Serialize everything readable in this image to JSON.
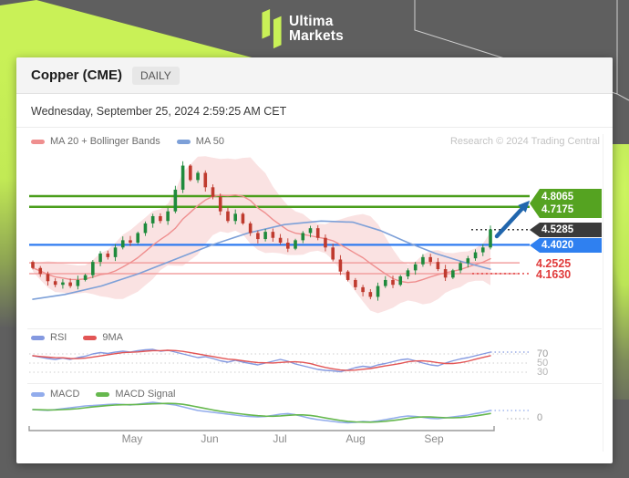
{
  "logo": {
    "line1": "Ultima",
    "line2": "Markets"
  },
  "header": {
    "title": "Copper (CME)",
    "timeframe": "DAILY"
  },
  "date_line": "Wednesday, September 25, 2024 2:59:25 AM CET",
  "credit": "Research © 2024 Trading Central",
  "colors": {
    "accent_lime": "#c9f157",
    "background_gray": "#5f5f5f",
    "candle_up": "#1f8a3c",
    "candle_down": "#bf3a2e",
    "band_fill": "#f3b6b6",
    "ma20": "#ef8f8f",
    "ma50": "#7da0d8",
    "level_resistance": "#4a9e1b",
    "level_pivot": "#2f7bf0",
    "level_support": "#f2a0a0",
    "support_text": "#e03c3c",
    "last_dotted": "#3a3a3a",
    "rsi": "#8499e0",
    "rsi_ma": "#e25555",
    "macd": "#92acec",
    "macd_signal": "#66b84e",
    "arrow": "#2166ad",
    "tag_green": "#55a321",
    "tag_dark": "#3a3a3a",
    "tag_blue": "#2f80f0"
  },
  "chart_data": {
    "type": "candlestick",
    "symbol": "Copper (CME)",
    "interval": "DAILY",
    "title": "Copper (CME) daily candlestick chart with MA20+Bollinger Bands, MA50, RSI and MACD",
    "x_axis": {
      "labels": [
        "May",
        "Jun",
        "Jul",
        "Aug",
        "Sep"
      ],
      "range": "mid-April to late September 2024"
    },
    "y_axis": {
      "approx_range": [
        3.9,
        5.15
      ]
    },
    "levels": [
      {
        "label": "4.8065",
        "value": 4.8065,
        "kind": "resistance",
        "style": "solid-green"
      },
      {
        "label": "4.7175",
        "value": 4.7175,
        "kind": "resistance",
        "style": "solid-green"
      },
      {
        "label": "4.5285",
        "value": 4.5285,
        "kind": "last-price",
        "style": "dotted-dark"
      },
      {
        "label": "4.4020",
        "value": 4.402,
        "kind": "pivot",
        "style": "solid-blue"
      },
      {
        "label": "4.2525",
        "value": 4.2525,
        "kind": "support",
        "style": "solid-light-red"
      },
      {
        "label": "4.1630",
        "value": 4.163,
        "kind": "support",
        "style": "solid-light-red-dotted-end"
      }
    ],
    "closes": [
      4.21,
      4.16,
      4.1,
      4.07,
      4.09,
      4.06,
      4.11,
      4.15,
      4.26,
      4.33,
      4.3,
      4.38,
      4.44,
      4.42,
      4.5,
      4.58,
      4.64,
      4.6,
      4.68,
      4.86,
      5.06,
      4.94,
      5.0,
      4.88,
      4.8,
      4.68,
      4.6,
      4.66,
      4.58,
      4.5,
      4.45,
      4.51,
      4.46,
      4.42,
      4.37,
      4.44,
      4.5,
      4.54,
      4.46,
      4.38,
      4.28,
      4.18,
      4.11,
      4.05,
      4.01,
      3.97,
      4.06,
      4.11,
      4.07,
      4.14,
      4.19,
      4.24,
      4.3,
      4.26,
      4.2,
      4.13,
      4.19,
      4.25,
      4.29,
      4.34,
      4.38,
      4.53
    ],
    "ma50_path": [
      [
        0,
        3.95
      ],
      [
        0.07,
        3.99
      ],
      [
        0.15,
        4.06
      ],
      [
        0.23,
        4.16
      ],
      [
        0.31,
        4.28
      ],
      [
        0.39,
        4.4
      ],
      [
        0.47,
        4.5
      ],
      [
        0.55,
        4.57
      ],
      [
        0.63,
        4.6
      ],
      [
        0.7,
        4.59
      ],
      [
        0.76,
        4.52
      ],
      [
        0.82,
        4.42
      ],
      [
        0.88,
        4.33
      ],
      [
        0.94,
        4.26
      ],
      [
        1,
        4.2
      ]
    ],
    "indicators": {
      "rsi": {
        "guides": [
          70,
          50,
          30
        ],
        "values": [
          66,
          63,
          60,
          58,
          61,
          58,
          62,
          65,
          70,
          73,
          71,
          74,
          76,
          74,
          77,
          79,
          80,
          76,
          78,
          74,
          70,
          66,
          62,
          64,
          60,
          55,
          52,
          56,
          52,
          49,
          46,
          50,
          54,
          58,
          54,
          48,
          44,
          40,
          36,
          34,
          33,
          31,
          35,
          40,
          43,
          41,
          46,
          49,
          53,
          57,
          59,
          55,
          50,
          46,
          44,
          50,
          55,
          59,
          62,
          66,
          70,
          74
        ]
      },
      "macd": {
        "guides": [
          0
        ],
        "values": [
          0.05,
          0.048,
          0.046,
          0.05,
          0.055,
          0.06,
          0.065,
          0.07,
          0.072,
          0.075,
          0.078,
          0.08,
          0.078,
          0.075,
          0.08,
          0.085,
          0.09,
          0.085,
          0.08,
          0.075,
          0.065,
          0.055,
          0.045,
          0.04,
          0.035,
          0.03,
          0.025,
          0.02,
          0.015,
          0.012,
          0.01,
          0.012,
          0.018,
          0.025,
          0.028,
          0.022,
          0.012,
          0.002,
          -0.005,
          -0.01,
          -0.015,
          -0.02,
          -0.022,
          -0.02,
          -0.015,
          -0.018,
          -0.012,
          -0.005,
          0.002,
          0.01,
          0.015,
          0.012,
          0.008,
          0.002,
          0.0,
          0.005,
          0.01,
          0.015,
          0.02,
          0.028,
          0.035,
          0.045
        ]
      }
    },
    "legends": {
      "main": [
        {
          "label": "MA 20 + Bollinger Bands"
        },
        {
          "label": "MA 50"
        }
      ],
      "rsi": [
        {
          "label": "RSI"
        },
        {
          "label": "9MA"
        }
      ],
      "macd": [
        {
          "label": "MACD"
        },
        {
          "label": "MACD Signal"
        }
      ]
    },
    "annotation": {
      "arrow": "bullish breakout arrow toward 4.7175 / 4.8065 resistance zone"
    }
  }
}
